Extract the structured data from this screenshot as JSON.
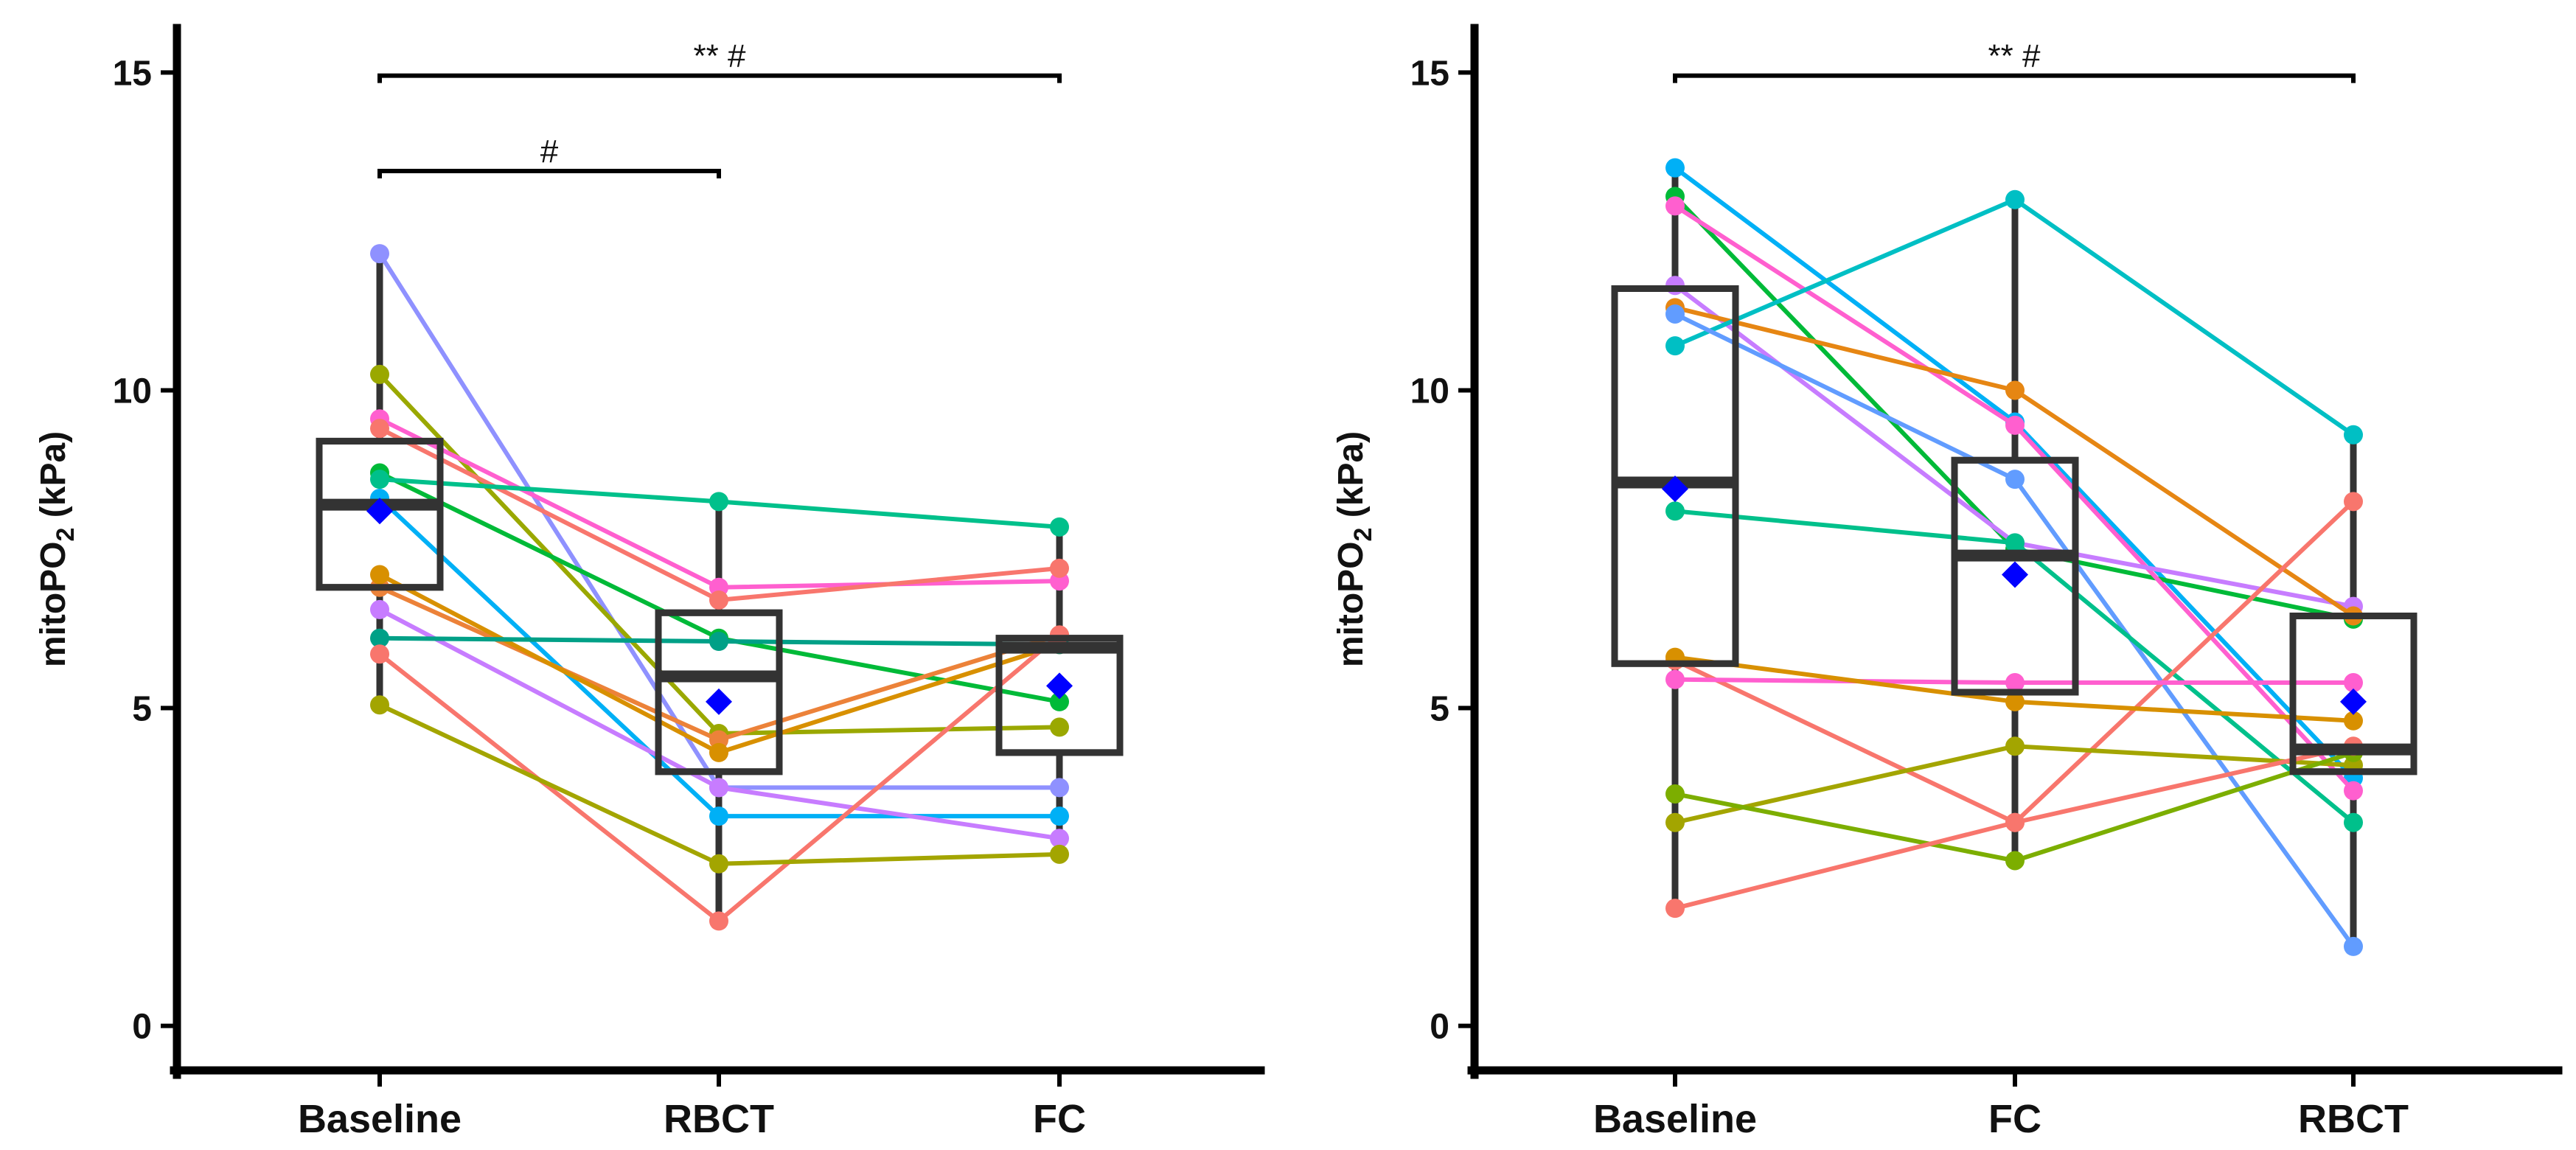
{
  "chart_data": [
    {
      "type": "box",
      "panel": "left",
      "ylabel_main": "mitoPO",
      "ylabel_sub": "2",
      "ylabel_unit": " (kPa)",
      "ylim": [
        -0.7,
        15.7
      ],
      "yticks": [
        0,
        5,
        10,
        15
      ],
      "categories": [
        "Baseline",
        "RBCT",
        "FC"
      ],
      "boxes": [
        {
          "q1": 6.9,
          "median": 8.2,
          "q3": 9.2,
          "whisker_low": 5.05,
          "whisker_high": 12.15,
          "mean": 8.1
        },
        {
          "q1": 4.0,
          "median": 5.5,
          "q3": 6.5,
          "whisker_low": 1.65,
          "whisker_high": 8.25,
          "mean": 5.1
        },
        {
          "q1": 4.3,
          "median": 5.95,
          "q3": 6.1,
          "whisker_low": 2.7,
          "whisker_high": 7.85,
          "mean": 5.35
        }
      ],
      "series": [
        {
          "color": "#8F91FF",
          "values": [
            12.15,
            3.75,
            3.75
          ]
        },
        {
          "color": "#9AA800",
          "values": [
            10.25,
            4.6,
            4.7
          ]
        },
        {
          "color": "#FF5FCF",
          "values": [
            9.55,
            6.9,
            7.0
          ]
        },
        {
          "color": "#F8766D",
          "values": [
            9.4,
            6.7,
            7.2
          ]
        },
        {
          "color": "#00BA38",
          "values": [
            8.7,
            6.1,
            5.1
          ]
        },
        {
          "color": "#00C08B",
          "values": [
            8.6,
            8.25,
            7.85
          ]
        },
        {
          "color": "#00B0F6",
          "values": [
            8.3,
            3.3,
            3.3
          ]
        },
        {
          "color": "#C77CFF",
          "values": [
            6.55,
            3.75,
            2.95
          ]
        },
        {
          "color": "#EC8239",
          "values": [
            6.9,
            4.5,
            6.15
          ]
        },
        {
          "color": "#D89000",
          "values": [
            7.1,
            4.3,
            6.0
          ]
        },
        {
          "color": "#00A087",
          "values": [
            6.1,
            6.05,
            6.0
          ]
        },
        {
          "color": "#F8766D",
          "values": [
            5.85,
            1.65,
            6.15
          ]
        },
        {
          "color": "#A3A500",
          "values": [
            5.05,
            2.55,
            2.7
          ]
        }
      ],
      "significance": [
        {
          "from": 0,
          "to": 2,
          "y": 14.95,
          "label": "**  #"
        },
        {
          "from": 0,
          "to": 1,
          "y": 13.45,
          "label": "#"
        }
      ]
    },
    {
      "type": "box",
      "panel": "right",
      "ylabel_main": "mitoPO",
      "ylabel_sub": "2",
      "ylabel_unit": " (kPa)",
      "ylim": [
        -0.7,
        15.7
      ],
      "yticks": [
        0,
        5,
        10,
        15
      ],
      "categories": [
        "Baseline",
        "FC",
        "RBCT"
      ],
      "boxes": [
        {
          "q1": 5.7,
          "median": 8.55,
          "q3": 11.6,
          "whisker_low": 1.85,
          "whisker_high": 13.5,
          "mean": 8.45
        },
        {
          "q1": 5.25,
          "median": 7.4,
          "q3": 8.9,
          "whisker_low": 2.6,
          "whisker_high": 13.0,
          "mean": 7.1
        },
        {
          "q1": 4.0,
          "median": 4.35,
          "q3": 6.45,
          "whisker_low": 1.25,
          "whisker_high": 9.3,
          "mean": 5.1
        }
      ],
      "series": [
        {
          "color": "#00B0F6",
          "values": [
            13.5,
            9.5,
            3.9
          ]
        },
        {
          "color": "#00BA38",
          "values": [
            13.05,
            7.5,
            6.4
          ]
        },
        {
          "color": "#FF5FCF",
          "values": [
            12.9,
            9.45,
            3.7
          ]
        },
        {
          "color": "#C77CFF",
          "values": [
            11.65,
            7.6,
            6.6
          ]
        },
        {
          "color": "#E68613",
          "values": [
            11.3,
            10.0,
            6.45
          ]
        },
        {
          "color": "#00BFC4",
          "values": [
            10.7,
            13.0,
            9.3
          ]
        },
        {
          "color": "#619CFF",
          "values": [
            11.2,
            8.6,
            1.25
          ]
        },
        {
          "color": "#00C08B",
          "values": [
            8.1,
            7.6,
            3.2
          ]
        },
        {
          "color": "#F8766D",
          "values": [
            5.75,
            3.2,
            8.25
          ]
        },
        {
          "color": "#FF5FCF",
          "values": [
            5.45,
            5.4,
            5.4
          ]
        },
        {
          "color": "#D89000",
          "values": [
            5.8,
            5.1,
            4.8
          ]
        },
        {
          "color": "#A3A500",
          "values": [
            3.2,
            4.4,
            4.1
          ]
        },
        {
          "color": "#7CAE00",
          "values": [
            3.65,
            2.6,
            4.3
          ]
        },
        {
          "color": "#F8766D",
          "values": [
            1.85,
            3.2,
            4.4
          ]
        }
      ],
      "significance": [
        {
          "from": 0,
          "to": 2,
          "y": 14.95,
          "label": "** #"
        }
      ]
    }
  ]
}
